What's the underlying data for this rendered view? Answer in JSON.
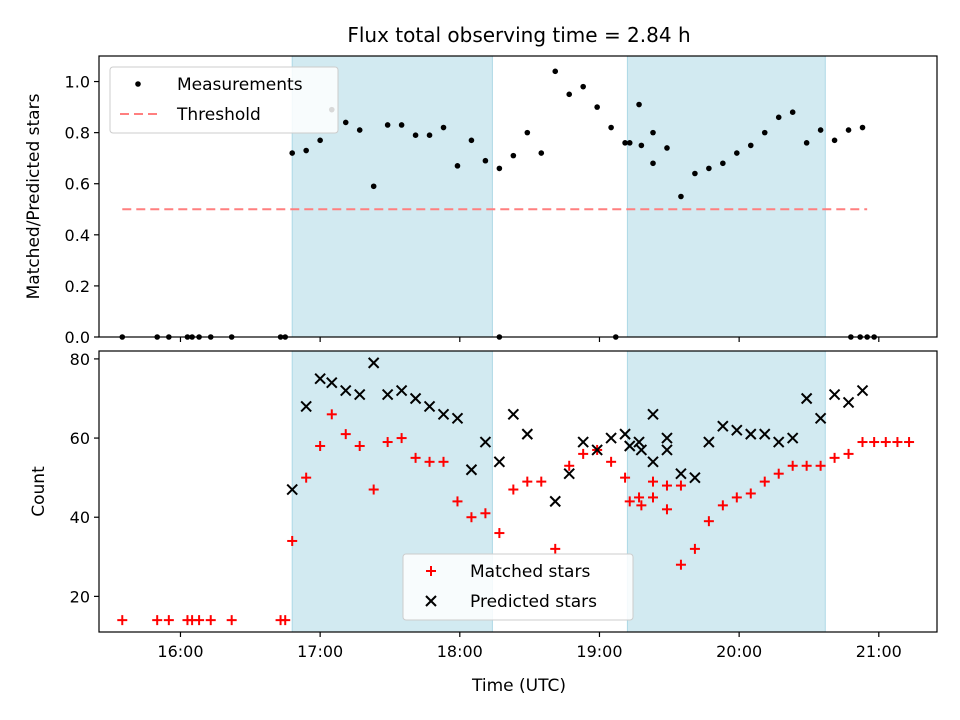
{
  "chart_data": {
    "title": "Flux total observing time = 2.84 h",
    "xlabel": "Time (UTC)",
    "x_ticks": [
      "16:00",
      "17:00",
      "18:00",
      "19:00",
      "20:00",
      "21:00"
    ],
    "xlim": [
      "15:25",
      "21:25"
    ],
    "shaded_intervals": [
      [
        "16:48",
        "18:14"
      ],
      [
        "19:12",
        "20:37"
      ]
    ],
    "shade_color": "#add8e6",
    "panels": [
      {
        "type": "scatter",
        "ylabel": "Matched/Predicted stars",
        "ylim": [
          0,
          1.1
        ],
        "y_ticks": [
          "0.0",
          "0.2",
          "0.4",
          "0.6",
          "0.8",
          "1.0"
        ],
        "legend_position": "top-left",
        "threshold": {
          "name": "Threshold",
          "value": 0.5,
          "x_range": [
            "15:35",
            "20:55"
          ],
          "color": "#ff7f7f",
          "style": "dashed"
        },
        "series": [
          {
            "name": "Measurements",
            "color": "#000000",
            "marker": "dot",
            "points": [
              [
                "15:35",
                0.0
              ],
              [
                "15:50",
                0.0
              ],
              [
                "15:55",
                0.0
              ],
              [
                "16:03",
                0.0
              ],
              [
                "16:05",
                0.0
              ],
              [
                "16:08",
                0.0
              ],
              [
                "16:13",
                0.0
              ],
              [
                "16:22",
                0.0
              ],
              [
                "16:43",
                0.0
              ],
              [
                "16:45",
                0.0
              ],
              [
                "16:48",
                0.72
              ],
              [
                "16:54",
                0.73
              ],
              [
                "17:00",
                0.77
              ],
              [
                "17:05",
                0.89
              ],
              [
                "17:11",
                0.84
              ],
              [
                "17:17",
                0.81
              ],
              [
                "17:23",
                0.59
              ],
              [
                "17:29",
                0.83
              ],
              [
                "17:35",
                0.83
              ],
              [
                "17:41",
                0.79
              ],
              [
                "17:47",
                0.79
              ],
              [
                "17:53",
                0.82
              ],
              [
                "17:59",
                0.67
              ],
              [
                "18:05",
                0.77
              ],
              [
                "18:11",
                0.69
              ],
              [
                "18:17",
                0.66
              ],
              [
                "18:23",
                0.71
              ],
              [
                "18:29",
                0.8
              ],
              [
                "18:17",
                0.0
              ],
              [
                "18:35",
                0.72
              ],
              [
                "18:41",
                1.04
              ],
              [
                "18:47",
                0.95
              ],
              [
                "18:53",
                0.98
              ],
              [
                "18:59",
                0.9
              ],
              [
                "19:05",
                0.82
              ],
              [
                "19:11",
                0.76
              ],
              [
                "19:17",
                0.91
              ],
              [
                "19:23",
                0.8
              ],
              [
                "19:07",
                0.0
              ],
              [
                "19:13",
                0.76
              ],
              [
                "19:18",
                0.75
              ],
              [
                "19:23",
                0.68
              ],
              [
                "19:29",
                0.74
              ],
              [
                "19:35",
                0.55
              ],
              [
                "19:41",
                0.64
              ],
              [
                "19:47",
                0.66
              ],
              [
                "19:53",
                0.68
              ],
              [
                "19:59",
                0.72
              ],
              [
                "20:05",
                0.75
              ],
              [
                "20:11",
                0.8
              ],
              [
                "20:17",
                0.86
              ],
              [
                "20:23",
                0.88
              ],
              [
                "20:29",
                0.76
              ],
              [
                "20:35",
                0.81
              ],
              [
                "20:41",
                0.77
              ],
              [
                "20:47",
                0.81
              ],
              [
                "20:53",
                0.82
              ],
              [
                "20:48",
                0.0
              ],
              [
                "20:52",
                0.0
              ],
              [
                "20:55",
                0.0
              ],
              [
                "20:58",
                0.0
              ]
            ]
          }
        ]
      },
      {
        "type": "scatter",
        "ylabel": "Count",
        "ylim": [
          11,
          82
        ],
        "y_ticks": [
          "20",
          "40",
          "60",
          "80"
        ],
        "legend_position": "lower-center",
        "series": [
          {
            "name": "Matched stars",
            "color": "#ff0000",
            "marker": "plus",
            "points": [
              [
                "15:35",
                14
              ],
              [
                "15:50",
                14
              ],
              [
                "15:55",
                14
              ],
              [
                "16:03",
                14
              ],
              [
                "16:05",
                14
              ],
              [
                "16:08",
                14
              ],
              [
                "16:13",
                14
              ],
              [
                "16:22",
                14
              ],
              [
                "16:43",
                14
              ],
              [
                "16:45",
                14
              ],
              [
                "16:48",
                34
              ],
              [
                "16:54",
                50
              ],
              [
                "17:00",
                58
              ],
              [
                "17:05",
                66
              ],
              [
                "17:11",
                61
              ],
              [
                "17:17",
                58
              ],
              [
                "17:23",
                47
              ],
              [
                "17:29",
                59
              ],
              [
                "17:35",
                60
              ],
              [
                "17:41",
                55
              ],
              [
                "17:47",
                54
              ],
              [
                "17:53",
                54
              ],
              [
                "17:59",
                44
              ],
              [
                "18:05",
                40
              ],
              [
                "18:11",
                41
              ],
              [
                "18:17",
                36
              ],
              [
                "18:23",
                47
              ],
              [
                "18:29",
                49
              ],
              [
                "18:35",
                49
              ],
              [
                "18:41",
                32
              ],
              [
                "18:47",
                53
              ],
              [
                "18:53",
                56
              ],
              [
                "18:59",
                57
              ],
              [
                "19:05",
                54
              ],
              [
                "19:11",
                50
              ],
              [
                "19:17",
                45
              ],
              [
                "19:23",
                49
              ],
              [
                "19:29",
                48
              ],
              [
                "19:35",
                48
              ],
              [
                "19:13",
                44
              ],
              [
                "19:18",
                43
              ],
              [
                "19:23",
                45
              ],
              [
                "19:29",
                42
              ],
              [
                "19:35",
                28
              ],
              [
                "19:41",
                32
              ],
              [
                "19:47",
                39
              ],
              [
                "19:53",
                43
              ],
              [
                "19:59",
                45
              ],
              [
                "20:05",
                46
              ],
              [
                "20:11",
                49
              ],
              [
                "20:17",
                51
              ],
              [
                "20:23",
                53
              ],
              [
                "20:29",
                53
              ],
              [
                "20:35",
                53
              ],
              [
                "20:41",
                55
              ],
              [
                "20:47",
                56
              ],
              [
                "20:53",
                59
              ],
              [
                "20:58",
                59
              ],
              [
                "21:03",
                59
              ],
              [
                "21:08",
                59
              ],
              [
                "21:13",
                59
              ]
            ]
          },
          {
            "name": "Predicted stars",
            "color": "#000000",
            "marker": "x",
            "points": [
              [
                "16:48",
                47
              ],
              [
                "16:54",
                68
              ],
              [
                "17:00",
                75
              ],
              [
                "17:05",
                74
              ],
              [
                "17:11",
                72
              ],
              [
                "17:17",
                71
              ],
              [
                "17:23",
                79
              ],
              [
                "17:29",
                71
              ],
              [
                "17:35",
                72
              ],
              [
                "17:41",
                70
              ],
              [
                "17:47",
                68
              ],
              [
                "17:53",
                66
              ],
              [
                "17:59",
                65
              ],
              [
                "18:05",
                52
              ],
              [
                "18:11",
                59
              ],
              [
                "18:17",
                54
              ],
              [
                "18:23",
                66
              ],
              [
                "18:29",
                61
              ],
              [
                "18:41",
                44
              ],
              [
                "18:47",
                51
              ],
              [
                "18:53",
                59
              ],
              [
                "18:59",
                57
              ],
              [
                "19:05",
                60
              ],
              [
                "19:11",
                61
              ],
              [
                "19:17",
                59
              ],
              [
                "19:23",
                54
              ],
              [
                "19:29",
                60
              ],
              [
                "19:13",
                58
              ],
              [
                "19:18",
                57
              ],
              [
                "19:23",
                66
              ],
              [
                "19:29",
                57
              ],
              [
                "19:35",
                51
              ],
              [
                "19:41",
                50
              ],
              [
                "19:47",
                59
              ],
              [
                "19:53",
                63
              ],
              [
                "19:59",
                62
              ],
              [
                "20:05",
                61
              ],
              [
                "20:11",
                61
              ],
              [
                "20:17",
                59
              ],
              [
                "20:23",
                60
              ],
              [
                "20:29",
                70
              ],
              [
                "20:35",
                65
              ],
              [
                "20:41",
                71
              ],
              [
                "20:47",
                69
              ],
              [
                "20:53",
                72
              ]
            ]
          }
        ]
      }
    ]
  }
}
